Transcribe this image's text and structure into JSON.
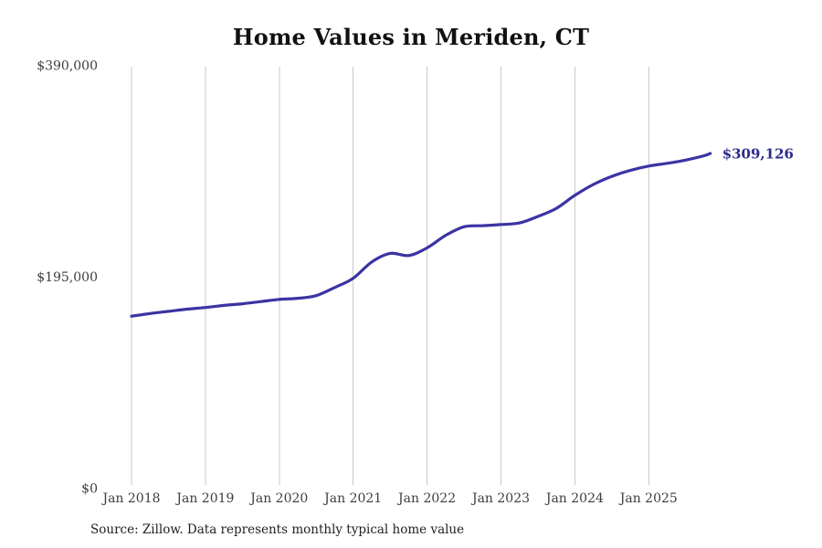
{
  "page": {
    "title": "Home Values in Meriden, CT",
    "source_note": "Source: Zillow. Data represents monthly typical home value"
  },
  "chart_data": {
    "type": "line",
    "title": "Home Values in Meriden, CT",
    "xlabel": "",
    "ylabel": "",
    "ylim": [
      0,
      390000
    ],
    "grid": "vertical-only",
    "legend": "none",
    "colors": {
      "line": "#3a34a3",
      "end_label": "#2d2a8c",
      "gridline": "#c9c9c9",
      "tick_text": "#3d3d3d",
      "title_text": "#111111"
    },
    "y_ticks": [
      {
        "value": 0,
        "label": "$0"
      },
      {
        "value": 195000,
        "label": "$195,000"
      },
      {
        "value": 390000,
        "label": "$390,000"
      }
    ],
    "x_ticks": [
      {
        "date": "2018-01",
        "label": "Jan 2018"
      },
      {
        "date": "2019-01",
        "label": "Jan 2019"
      },
      {
        "date": "2020-01",
        "label": "Jan 2020"
      },
      {
        "date": "2021-01",
        "label": "Jan 2021"
      },
      {
        "date": "2022-01",
        "label": "Jan 2022"
      },
      {
        "date": "2023-01",
        "label": "Jan 2023"
      },
      {
        "date": "2024-01",
        "label": "Jan 2024"
      },
      {
        "date": "2025-01",
        "label": "Jan 2025"
      }
    ],
    "end_label": {
      "text": "$309,126"
    },
    "series": [
      {
        "name": "Typical home value",
        "points": [
          {
            "date": "2018-01",
            "value": 159000
          },
          {
            "date": "2018-04",
            "value": 161500
          },
          {
            "date": "2018-07",
            "value": 163500
          },
          {
            "date": "2018-10",
            "value": 165500
          },
          {
            "date": "2019-01",
            "value": 167000
          },
          {
            "date": "2019-04",
            "value": 169000
          },
          {
            "date": "2019-07",
            "value": 170500
          },
          {
            "date": "2019-10",
            "value": 172500
          },
          {
            "date": "2020-01",
            "value": 174500
          },
          {
            "date": "2020-04",
            "value": 175500
          },
          {
            "date": "2020-07",
            "value": 178000
          },
          {
            "date": "2020-10",
            "value": 185500
          },
          {
            "date": "2021-01",
            "value": 194000
          },
          {
            "date": "2021-04",
            "value": 209000
          },
          {
            "date": "2021-07",
            "value": 217000
          },
          {
            "date": "2021-10",
            "value": 215000
          },
          {
            "date": "2022-01",
            "value": 222000
          },
          {
            "date": "2022-04",
            "value": 233500
          },
          {
            "date": "2022-07",
            "value": 241500
          },
          {
            "date": "2022-10",
            "value": 242500
          },
          {
            "date": "2023-01",
            "value": 243500
          },
          {
            "date": "2023-04",
            "value": 245000
          },
          {
            "date": "2023-07",
            "value": 251000
          },
          {
            "date": "2023-10",
            "value": 258500
          },
          {
            "date": "2024-01",
            "value": 270500
          },
          {
            "date": "2024-04",
            "value": 280500
          },
          {
            "date": "2024-07",
            "value": 288000
          },
          {
            "date": "2024-10",
            "value": 293500
          },
          {
            "date": "2025-01",
            "value": 297500
          },
          {
            "date": "2025-04",
            "value": 300000
          },
          {
            "date": "2025-07",
            "value": 303000
          },
          {
            "date": "2025-10",
            "value": 307000
          },
          {
            "date": "2025-11",
            "value": 309126
          }
        ]
      }
    ],
    "source": "Source: Zillow. Data represents monthly typical home value"
  }
}
